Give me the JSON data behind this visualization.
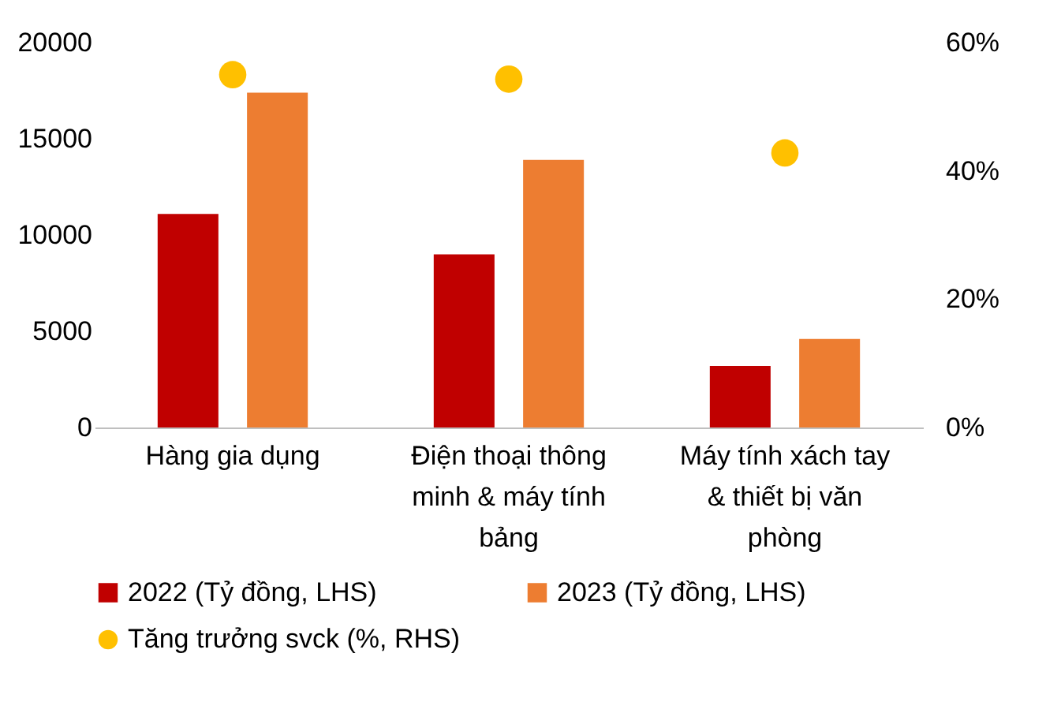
{
  "chart_data": {
    "type": "bar",
    "categories": [
      "Hàng gia dụng",
      "Điện thoại thông minh & máy tính bảng",
      "Máy tính xách tay & thiết bị văn phòng"
    ],
    "series": [
      {
        "name": "2022 (Tỷ đồng, LHS)",
        "color": "#c00000",
        "values": [
          11100,
          9000,
          3200
        ]
      },
      {
        "name": "2023 (Tỷ đồng, LHS)",
        "color": "#ed7d31",
        "values": [
          17400,
          13900,
          4600
        ]
      },
      {
        "name": "Tăng trưởng svck (%, RHS)",
        "color": "#ffc000",
        "type": "scatter",
        "axis": "y2",
        "x": [
          "Hàng gia dụng",
          "Điện thoại thông minh & máy tính bảng",
          "Máy tính xách tay & thiết bị văn phòng"
        ],
        "values": [
          55,
          54.3,
          42.8
        ]
      }
    ],
    "ylim": [
      0,
      20000
    ],
    "yticks": [
      0,
      5000,
      10000,
      15000,
      20000
    ],
    "y2lim": [
      0,
      60
    ],
    "y2ticks": [
      {
        "value": 0,
        "label": "0%"
      },
      {
        "value": 20,
        "label": "20%"
      },
      {
        "value": 40,
        "label": "40%"
      },
      {
        "value": 60,
        "label": "60%"
      }
    ],
    "legend": "bottom",
    "grid": false
  }
}
